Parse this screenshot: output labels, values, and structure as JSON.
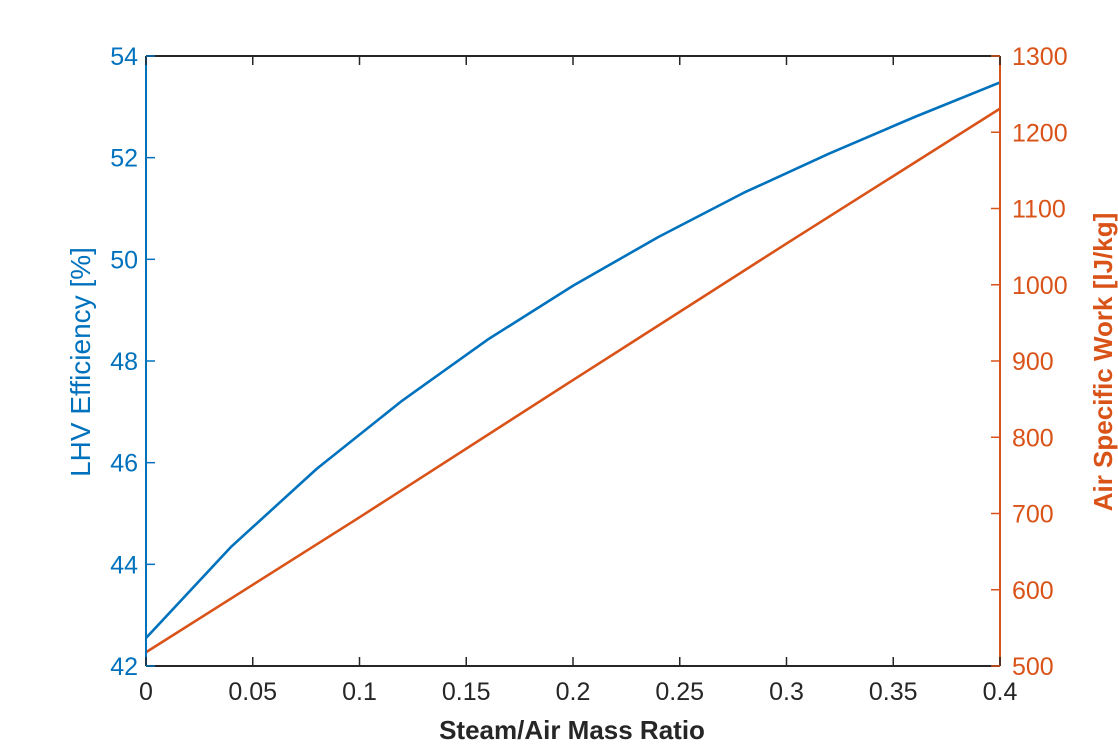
{
  "chart_data": {
    "type": "line",
    "xlabel": "Steam/Air Mass Ratio",
    "xlim": [
      0,
      0.4
    ],
    "x_ticks": [
      "0",
      "0.05",
      "0.1",
      "0.15",
      "0.2",
      "0.25",
      "0.3",
      "0.35",
      "0.4"
    ],
    "y_left": {
      "label": "LHV Efficiency [%]",
      "lim": [
        42,
        54
      ],
      "ticks": [
        "42",
        "44",
        "46",
        "48",
        "50",
        "52",
        "54"
      ],
      "color": "#0072BD"
    },
    "y_right": {
      "label": "Air Specific Work [lJ/kg]",
      "lim": [
        500,
        1300
      ],
      "ticks": [
        "500",
        "600",
        "700",
        "800",
        "900",
        "1000",
        "1100",
        "1200",
        "1300"
      ],
      "color": "#D95319"
    },
    "series": [
      {
        "axis": "left",
        "color": "#0072BD",
        "x": [
          0,
          0.04,
          0.08,
          0.12,
          0.16,
          0.2,
          0.24,
          0.28,
          0.32,
          0.36,
          0.4
        ],
        "y": [
          42.55,
          44.35,
          45.88,
          47.22,
          48.42,
          49.48,
          50.44,
          51.31,
          52.08,
          52.8,
          53.48
        ]
      },
      {
        "axis": "right",
        "color": "#D95319",
        "x": [
          0,
          0.1,
          0.2,
          0.3,
          0.4
        ],
        "y": [
          518,
          695,
          875,
          1054,
          1231
        ]
      }
    ],
    "grid": false,
    "legend": "none",
    "axis_color": "#262626"
  }
}
